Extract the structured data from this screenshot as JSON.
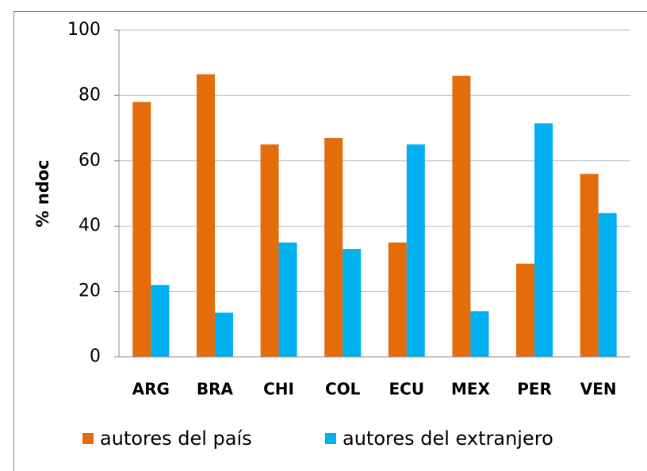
{
  "chart_data": {
    "type": "bar",
    "categories": [
      "ARG",
      "BRA",
      "CHI",
      "COL",
      "ECU",
      "MEX",
      "PER",
      "VEN"
    ],
    "series": [
      {
        "name": "autores del país",
        "color": "#e46c0a",
        "values": [
          78,
          86.5,
          65,
          67,
          35,
          86,
          28.5,
          56
        ]
      },
      {
        "name": "autores del extranjero",
        "color": "#00b0f0",
        "values": [
          22,
          13.5,
          35,
          33,
          65,
          14,
          71.5,
          44
        ]
      }
    ],
    "ylabel": "% ndoc",
    "ylim": [
      0,
      100
    ],
    "yticks": [
      0,
      20,
      40,
      60,
      80,
      100
    ],
    "grid": true,
    "legend": "bottom"
  }
}
